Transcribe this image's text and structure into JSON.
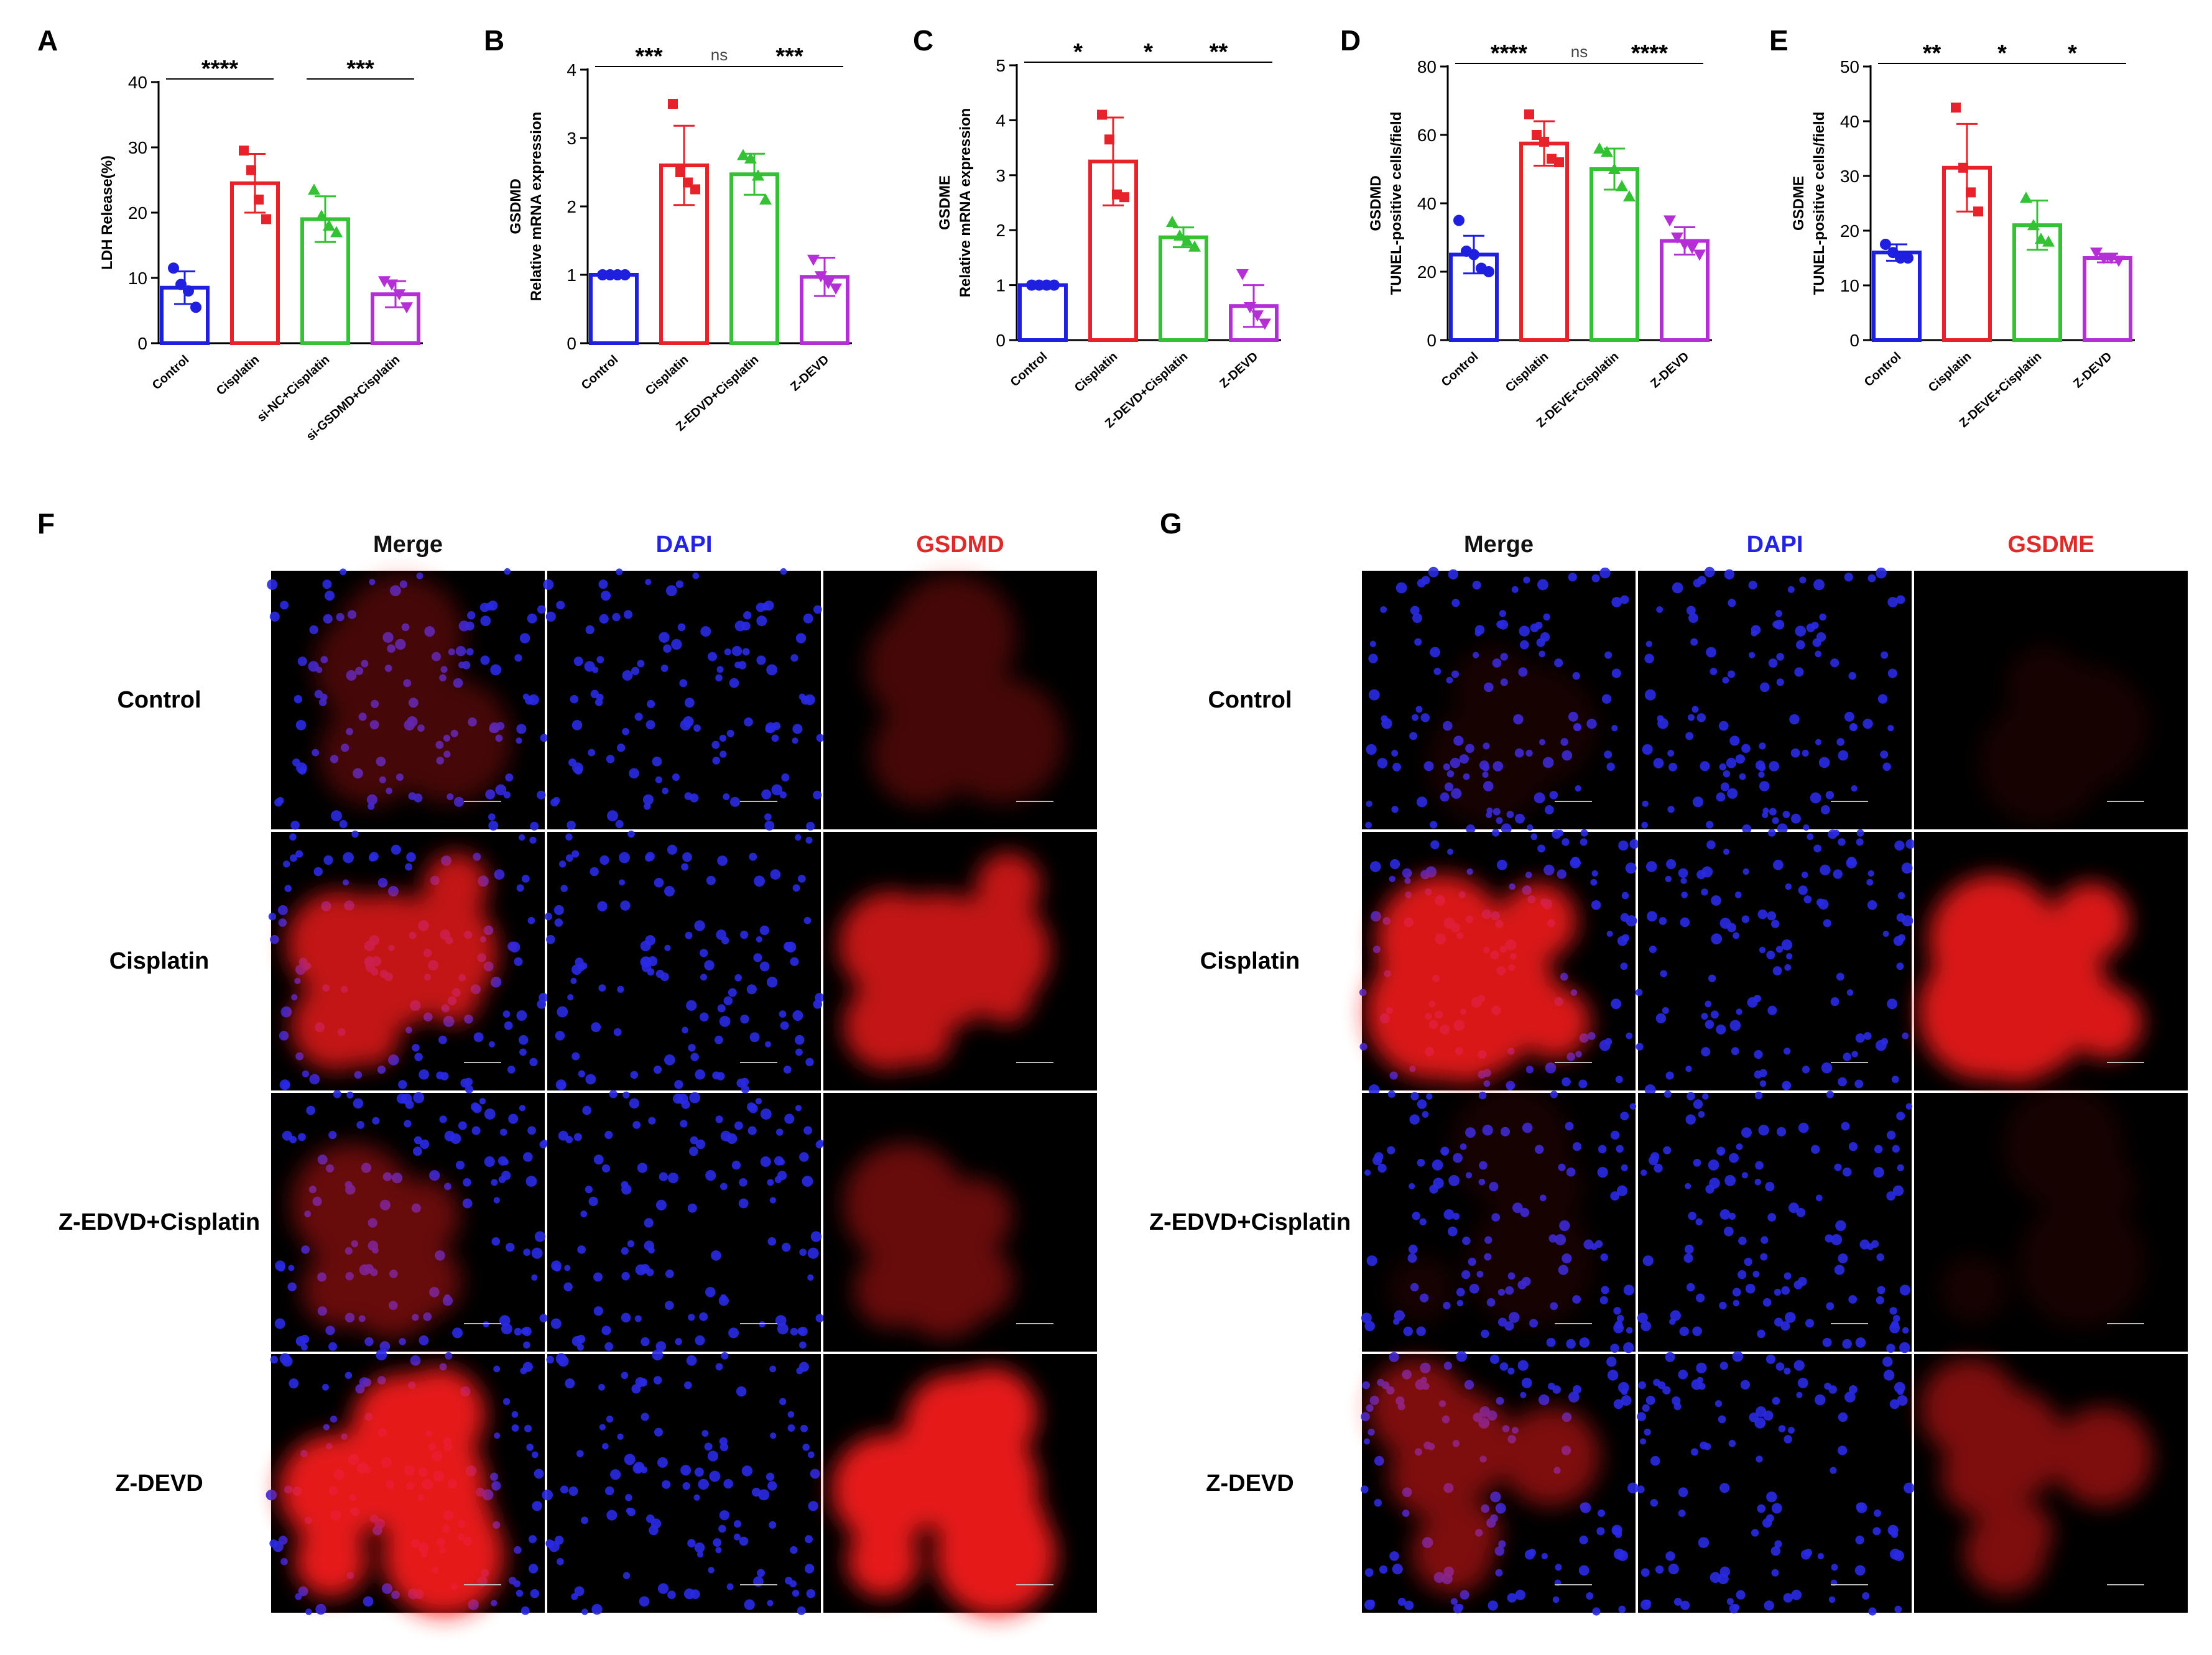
{
  "panels": {
    "A": "A",
    "B": "B",
    "C": "C",
    "D": "D",
    "E": "E",
    "F": "F",
    "G": "G"
  },
  "colors": {
    "control": "#1f1fe0",
    "cisplatin": "#e8222a",
    "third": "#33c233",
    "fourth": "#b52fd6"
  },
  "chart_data": [
    {
      "panel": "A",
      "type": "bar",
      "ylabel": "LDH Release(%)",
      "ylim": [
        0,
        40
      ],
      "yticks": [
        0,
        10,
        20,
        30,
        40
      ],
      "categories": [
        "Control",
        "Cisplatin",
        "si-NC+Cisplatin",
        "si-GSDMD+Cisplatin"
      ],
      "values": [
        8.5,
        24.5,
        19,
        7.5
      ],
      "errors": [
        2.5,
        4.5,
        3.5,
        2
      ],
      "points": [
        [
          11.5,
          9,
          8,
          5.5
        ],
        [
          29.5,
          26.5,
          22,
          19
        ],
        [
          23.5,
          19.5,
          18,
          17
        ],
        [
          9.5,
          9,
          7.5,
          5.5
        ]
      ],
      "significance": [
        {
          "from": 0,
          "to": 1,
          "label": "****"
        },
        {
          "from": 2,
          "to": 3,
          "label": "***"
        }
      ]
    },
    {
      "panel": "B",
      "type": "bar",
      "title": "GSDMD",
      "ylabel": "Relative mRNA expression",
      "ylim": [
        0,
        4
      ],
      "yticks": [
        0,
        1,
        2,
        3,
        4
      ],
      "categories": [
        "Control",
        "Cisplatin",
        "Z-EDVD+Cisplatin",
        "Z-DEVD"
      ],
      "values": [
        1.0,
        2.6,
        2.47,
        0.97
      ],
      "errors": [
        0.02,
        0.58,
        0.3,
        0.28
      ],
      "points": [
        [
          1.0,
          1.0,
          1.0,
          1.0
        ],
        [
          3.5,
          2.5,
          2.35,
          2.25
        ],
        [
          2.75,
          2.7,
          2.45,
          2.1
        ],
        [
          1.22,
          0.98,
          0.88,
          0.8
        ]
      ],
      "significance": [
        {
          "from": 0,
          "to": 1,
          "label": "***"
        },
        {
          "from": 1,
          "to": 2,
          "label": "ns"
        },
        {
          "from": 2,
          "to": 3,
          "label": "***"
        }
      ]
    },
    {
      "panel": "C",
      "type": "bar",
      "title": "GSDME",
      "ylabel": "Relative mRNA expression",
      "ylim": [
        0,
        5
      ],
      "yticks": [
        0,
        1,
        2,
        3,
        4,
        5
      ],
      "categories": [
        "Control",
        "Cisplatin",
        "Z-DEVD+Cisplatin",
        "Z-DEVD"
      ],
      "values": [
        1.0,
        3.25,
        1.87,
        0.62
      ],
      "errors": [
        0.02,
        0.8,
        0.18,
        0.38
      ],
      "points": [
        [
          1.0,
          1.0,
          1.0,
          1.0
        ],
        [
          4.1,
          3.65,
          2.65,
          2.6
        ],
        [
          2.15,
          1.9,
          1.8,
          1.7
        ],
        [
          1.2,
          0.6,
          0.45,
          0.3
        ]
      ],
      "significance": [
        {
          "from": 0,
          "to": 1,
          "label": "*"
        },
        {
          "from": 1,
          "to": 2,
          "label": "*"
        },
        {
          "from": 2,
          "to": 3,
          "label": "**"
        }
      ]
    },
    {
      "panel": "D",
      "type": "bar",
      "title": "GSDMD",
      "ylabel": "TUNEL-positive cells/field",
      "ylim": [
        0,
        80
      ],
      "yticks": [
        0,
        20,
        40,
        60,
        80
      ],
      "categories": [
        "Control",
        "Cisplatin",
        "Z-DEVE+Cisplatin",
        "Z-DEVD"
      ],
      "values": [
        25,
        57.5,
        50,
        29
      ],
      "errors": [
        5.5,
        6.5,
        6,
        4
      ],
      "points": [
        [
          35,
          26,
          25,
          21,
          20
        ],
        [
          66,
          60,
          58,
          53,
          52
        ],
        [
          56,
          55,
          50,
          45,
          42
        ],
        [
          35,
          30,
          28,
          27,
          25
        ]
      ],
      "significance": [
        {
          "from": 0,
          "to": 1,
          "label": "****"
        },
        {
          "from": 1,
          "to": 2,
          "label": "ns"
        },
        {
          "from": 2,
          "to": 3,
          "label": "****"
        }
      ]
    },
    {
      "panel": "E",
      "type": "bar",
      "title": "GSDME",
      "ylabel": "TUNEL-positive cells/field",
      "ylim": [
        0,
        50
      ],
      "yticks": [
        0,
        10,
        20,
        30,
        40,
        50
      ],
      "categories": [
        "Control",
        "Cisplatin",
        "Z-DEVE+Cisplatin",
        "Z-DEVD"
      ],
      "values": [
        16,
        31.5,
        21,
        15
      ],
      "errors": [
        1.5,
        8,
        4.5,
        0.8
      ],
      "points": [
        [
          17.5,
          16,
          15,
          15
        ],
        [
          42.5,
          31.5,
          27,
          23.5
        ],
        [
          26,
          21,
          18.5,
          18
        ],
        [
          16,
          15,
          15,
          14.5
        ]
      ],
      "significance": [
        {
          "from": 0,
          "to": 1,
          "label": "**"
        },
        {
          "from": 1,
          "to": 2,
          "label": "*"
        },
        {
          "from": 2,
          "to": 3,
          "label": "*"
        }
      ]
    }
  ],
  "micrographs": {
    "F": {
      "columns": [
        "Merge",
        "DAPI",
        "GSDMD"
      ],
      "rows": [
        "Control",
        "Cisplatin",
        "Z-EDVD+Cisplatin",
        "Z-DEVD"
      ],
      "red_intensity": [
        0.3,
        0.85,
        0.45,
        1.0
      ]
    },
    "G": {
      "columns": [
        "Merge",
        "DAPI",
        "GSDME"
      ],
      "rows": [
        "Control",
        "Cisplatin",
        "Z-EDVD+Cisplatin",
        "Z-DEVD"
      ],
      "red_intensity": [
        0.1,
        0.95,
        0.1,
        0.55
      ]
    }
  }
}
